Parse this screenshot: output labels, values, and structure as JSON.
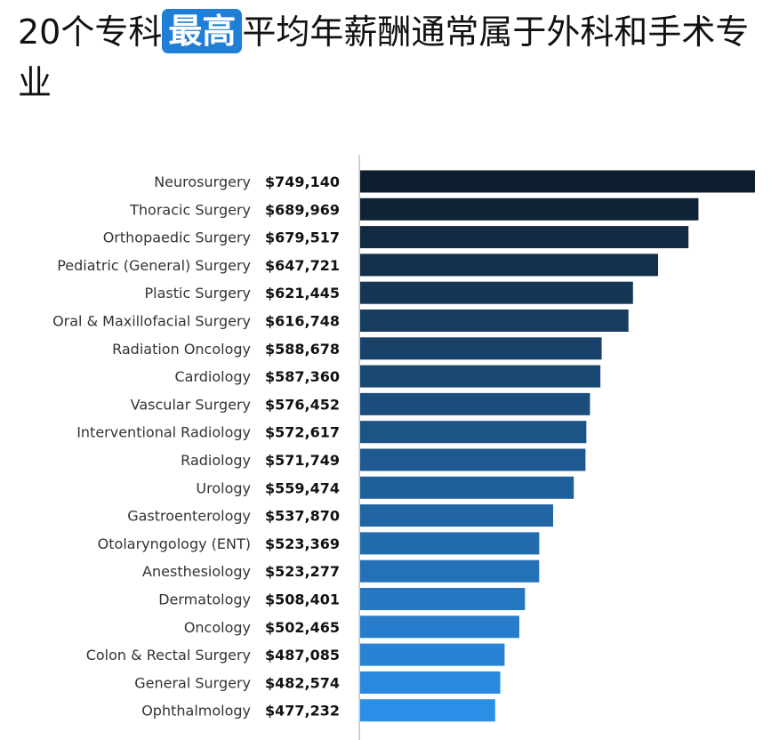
{
  "headline": {
    "prefix": "20个专科",
    "highlight": "最高",
    "suffix": "平均年薪酬通常属于外科和手术专业",
    "highlight_color": "#1f7ed6"
  },
  "chart_data": {
    "type": "bar",
    "orientation": "horizontal",
    "title": "",
    "xlabel": "",
    "ylabel": "",
    "grid": false,
    "legend": "none",
    "color_dark": "#0f1e2e",
    "color_light": "#2b8fe8",
    "categories": [
      "Neurosurgery",
      "Thoracic Surgery",
      "Orthopaedic Surgery",
      "Pediatric (General) Surgery",
      "Plastic Surgery",
      "Oral & Maxillofacial Surgery",
      "Radiation Oncology",
      "Cardiology",
      "Vascular Surgery",
      "Interventional Radiology",
      "Radiology",
      "Urology",
      "Gastroenterology",
      "Otolaryngology (ENT)",
      "Anesthesiology",
      "Dermatology",
      "Oncology",
      "Colon & Rectal Surgery",
      "General Surgery",
      "Ophthalmology"
    ],
    "values": [
      749140,
      689969,
      679517,
      647721,
      621445,
      616748,
      588678,
      587360,
      576452,
      572617,
      571749,
      559474,
      537870,
      523369,
      523277,
      508401,
      502465,
      487085,
      482574,
      477232
    ],
    "value_labels": [
      "$749,140",
      "$689,969",
      "$679,517",
      "$647,721",
      "$621,445",
      "$616,748",
      "$588,678",
      "$587,360",
      "$576,452",
      "$572,617",
      "$571,749",
      "$559,474",
      "$537,870",
      "$523,369",
      "$523,277",
      "$508,401",
      "$502,465",
      "$487,085",
      "$482,574",
      "$477,232"
    ]
  }
}
